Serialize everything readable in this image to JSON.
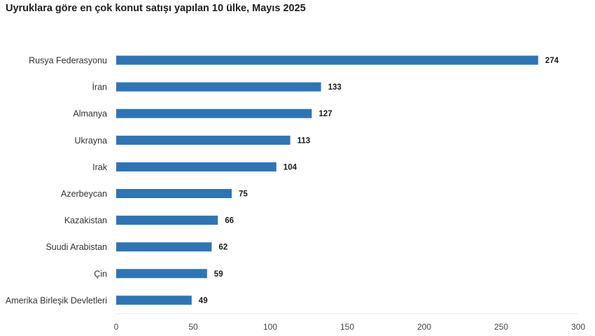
{
  "chart_data": {
    "type": "bar",
    "orientation": "horizontal",
    "title": "Uyruklara göre en çok konut satışı yapılan 10 ülke, Mayıs 2025",
    "categories": [
      "Rusya Federasyonu",
      "İran",
      "Almanya",
      "Ukrayna",
      "Irak",
      "Azerbeycan",
      "Kazakistan",
      "Suudi Arabistan",
      "Çin",
      "Amerika Birleşik Devletleri"
    ],
    "values": [
      274,
      133,
      127,
      113,
      104,
      75,
      66,
      62,
      59,
      49
    ],
    "value_labels": [
      "274",
      "133",
      "127",
      "113",
      "104",
      "75",
      "66",
      "62",
      "59",
      "49"
    ],
    "xlim": [
      0,
      300
    ],
    "xticks": [
      "0",
      "50",
      "100",
      "150",
      "200",
      "250",
      "300"
    ],
    "xtick_values": [
      0,
      50,
      100,
      150,
      200,
      250,
      300
    ],
    "grid": false,
    "bar_color": "#2e75b6"
  }
}
